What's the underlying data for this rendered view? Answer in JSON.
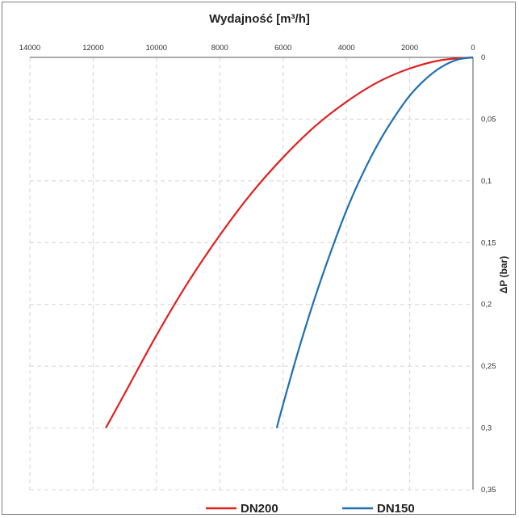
{
  "chart_data": {
    "type": "line",
    "title": "Wydajność [m³/h]",
    "xlabel": "Wydajność [m³/h]",
    "ylabel": "ΔP (bar)",
    "x_axis_position": "top",
    "x_reversed": true,
    "y_reversed": true,
    "y_axis_position": "right",
    "xlim": [
      0,
      14000
    ],
    "ylim": [
      0,
      0.35
    ],
    "x_ticks": [
      14000,
      12000,
      10000,
      8000,
      6000,
      4000,
      2000,
      0
    ],
    "y_ticks": [
      0,
      0.05,
      0.1,
      0.15,
      0.2,
      0.25,
      0.3,
      0.35
    ],
    "x_tick_labels": [
      "14000",
      "12000",
      "10000",
      "8000",
      "6000",
      "4000",
      "2000",
      "0"
    ],
    "y_tick_labels": [
      "0",
      "0,05",
      "0,1",
      "0,15",
      "0,2",
      "0,25",
      "0,3",
      "0,35"
    ],
    "grid": true,
    "legend_position": "bottom",
    "series": [
      {
        "name": "DN200",
        "color": "#e02020",
        "x": [
          0,
          1000,
          2000,
          3000,
          4000,
          5000,
          6000,
          7000,
          8000,
          9000,
          10000,
          11000,
          11600
        ],
        "y": [
          0,
          0.0022,
          0.009,
          0.02,
          0.036,
          0.056,
          0.081,
          0.11,
          0.144,
          0.182,
          0.225,
          0.272,
          0.3
        ]
      },
      {
        "name": "DN150",
        "color": "#1f6fb0",
        "x": [
          0,
          500,
          1000,
          1500,
          2000,
          2500,
          3000,
          3500,
          4000,
          4500,
          5000,
          5500,
          6000,
          6200
        ],
        "y": [
          0,
          0.0019,
          0.0078,
          0.0176,
          0.031,
          0.049,
          0.07,
          0.095,
          0.124,
          0.158,
          0.195,
          0.236,
          0.281,
          0.3
        ]
      }
    ]
  }
}
